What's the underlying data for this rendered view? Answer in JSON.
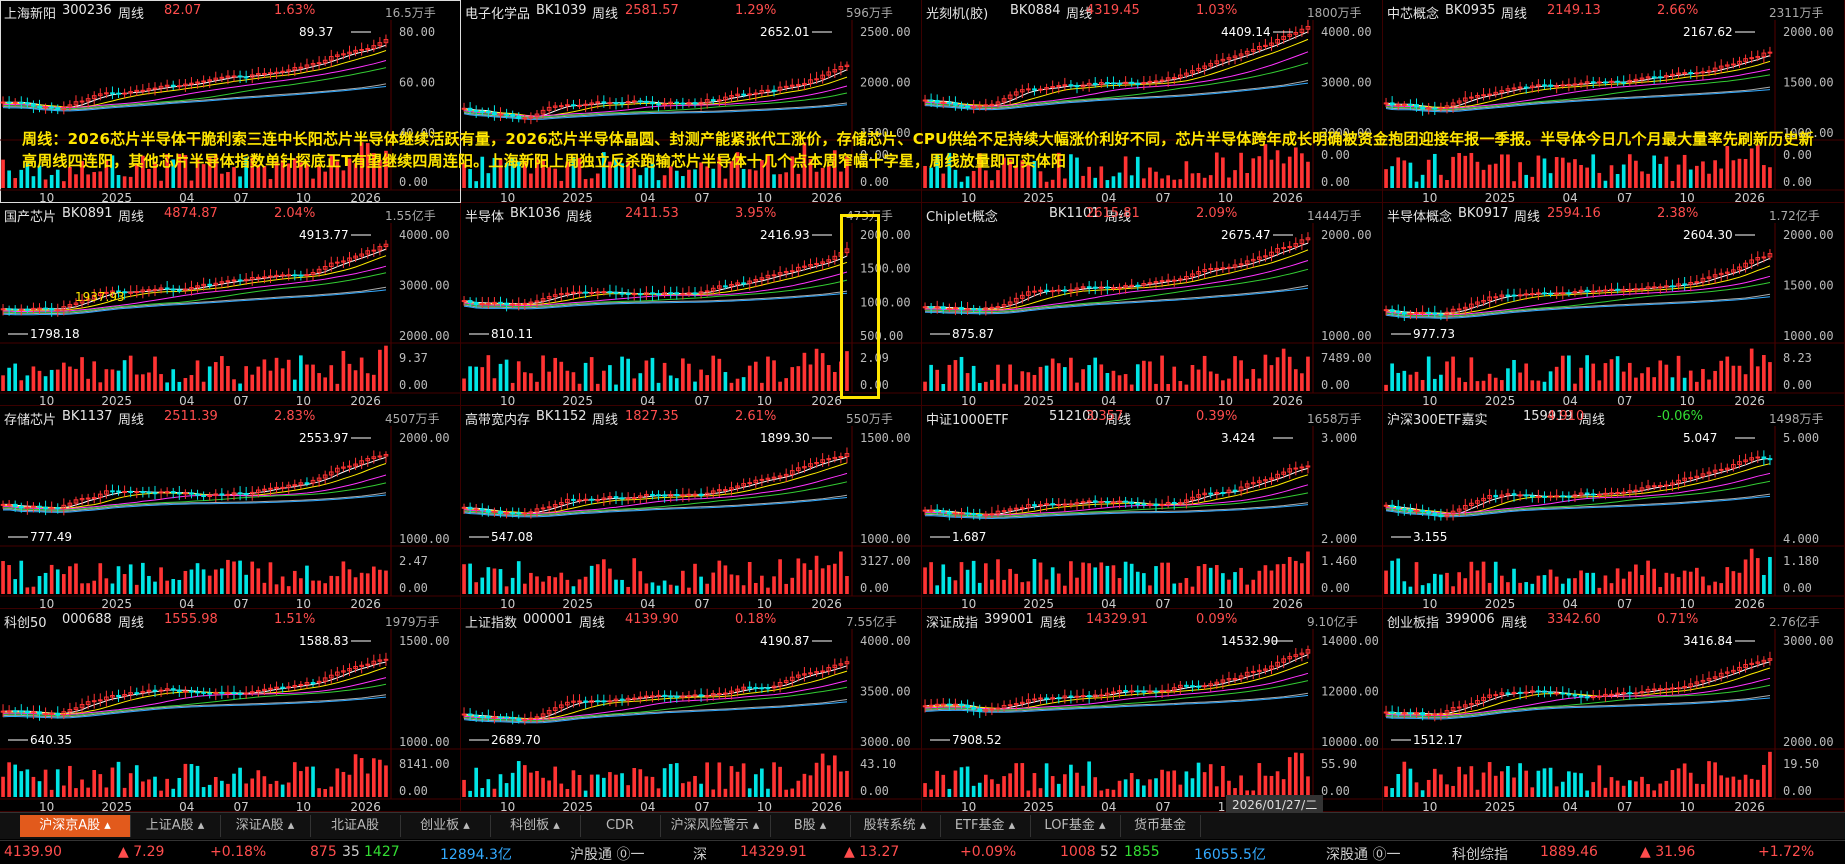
{
  "panels": [
    {
      "name": "上海新阳",
      "code": "300236",
      "type": "周线",
      "price": "82.07",
      "change": "1.63%",
      "vol": "16.5万手",
      "high": "89.37",
      "low": "",
      "yticks": [
        "80.00",
        "60.00",
        "40.00"
      ],
      "voltick": "",
      "xticks": [
        "10",
        "2025",
        "04",
        "07",
        "10",
        "2026"
      ],
      "trend": "up"
    },
    {
      "name": "电子化学品",
      "code": "BK1039",
      "type": "周线",
      "price": "2581.57",
      "change": "1.29%",
      "vol": "596万手",
      "high": "2652.01",
      "low": "",
      "yticks": [
        "2500.00",
        "2000.00",
        "1500.00"
      ],
      "voltick": "0.00",
      "xticks": [
        "10",
        "2025",
        "04",
        "07",
        "10",
        "2026"
      ],
      "trend": "up"
    },
    {
      "name": "光刻机(胶)",
      "code": "BK0884",
      "type": "周线",
      "price": "4319.45",
      "change": "1.03%",
      "vol": "1800万手",
      "high": "4409.14",
      "low": "",
      "yticks": [
        "4000.00",
        "3000.00",
        "2000.00"
      ],
      "voltick": "0.00",
      "xticks": [
        "10",
        "2025",
        "04",
        "07",
        "10",
        "2026"
      ],
      "trend": "up"
    },
    {
      "name": "中芯概念",
      "code": "BK0935",
      "type": "周线",
      "price": "2149.13",
      "change": "2.66%",
      "vol": "2311万手",
      "high": "2167.62",
      "low": "",
      "yticks": [
        "2000.00",
        "1500.00",
        "1000.00"
      ],
      "voltick": "0.00",
      "xticks": [
        "10",
        "2025",
        "04",
        "07",
        "10",
        "2026"
      ],
      "trend": "up"
    },
    {
      "name": "国产芯片",
      "code": "BK0891",
      "type": "周线",
      "price": "4874.87",
      "change": "2.04%",
      "vol": "1.55亿手",
      "high": "4913.77",
      "low": "1798.18",
      "yticks": [
        "4000.00",
        "3000.00",
        "2000.00"
      ],
      "voltick": "9.37",
      "xticks": [
        "10",
        "2025",
        "04",
        "07",
        "10",
        "2026"
      ],
      "trend": "up"
    },
    {
      "name": "半导体",
      "code": "BK1036",
      "type": "周线",
      "price": "2411.53",
      "change": "3.95%",
      "vol": "473万手",
      "high": "2416.93",
      "low": "810.11",
      "yticks": [
        "2000.00",
        "1500.00",
        "1000.00",
        "500.00"
      ],
      "voltick": "2.09",
      "xticks": [
        "10",
        "2025",
        "04",
        "07",
        "10",
        "2026"
      ],
      "trend": "up"
    },
    {
      "name": "Chiplet概念",
      "code": "BK1101",
      "type": "周线",
      "price": "2615.81",
      "change": "2.09%",
      "vol": "1444万手",
      "high": "2675.47",
      "low": "875.87",
      "yticks": [
        "2000.00",
        "1000.00"
      ],
      "voltick": "7489.00",
      "xticks": [
        "10",
        "2025",
        "04",
        "07",
        "10",
        "2026"
      ],
      "trend": "up"
    },
    {
      "name": "半导体概念",
      "code": "BK0917",
      "type": "周线",
      "price": "2594.16",
      "change": "2.38%",
      "vol": "1.72亿手",
      "high": "2604.30",
      "low": "977.73",
      "yticks": [
        "2000.00",
        "1500.00",
        "1000.00"
      ],
      "voltick": "8.23",
      "xticks": [
        "10",
        "2025",
        "04",
        "07",
        "10",
        "2026"
      ],
      "trend": "up"
    },
    {
      "name": "存储芯片",
      "code": "BK1137",
      "type": "周线",
      "price": "2511.39",
      "change": "2.83%",
      "vol": "4507万手",
      "high": "2553.97",
      "low": "777.49",
      "yticks": [
        "2000.00",
        "1000.00"
      ],
      "voltick": "2.47",
      "xticks": [
        "10",
        "2025",
        "04",
        "07",
        "10",
        "2026"
      ],
      "trend": "up"
    },
    {
      "name": "高带宽内存",
      "code": "BK1152",
      "type": "周线",
      "price": "1827.35",
      "change": "2.61%",
      "vol": "550万手",
      "high": "1899.30",
      "low": "547.08",
      "yticks": [
        "1500.00",
        "1000.00"
      ],
      "voltick": "3127.00",
      "xticks": [
        "10",
        "2025",
        "04",
        "07",
        "10",
        "2026"
      ],
      "trend": "up"
    },
    {
      "name": "中证1000ETF",
      "code": "512100",
      "type": "周线",
      "price": "3.357",
      "change": "0.39%",
      "vol": "1658万手",
      "high": "3.424",
      "low": "1.687",
      "yticks": [
        "3.000",
        "2.000"
      ],
      "voltick": "1.460",
      "xticks": [
        "10",
        "2025",
        "04",
        "07",
        "10",
        "2026"
      ],
      "trend": "up"
    },
    {
      "name": "沪深300ETF嘉实",
      "code": "159919",
      "type": "周线",
      "price": "4.910",
      "change": "-0.06%",
      "vol": "1498万手",
      "high": "5.047",
      "low": "3.155",
      "yticks": [
        "5.000",
        "4.000"
      ],
      "voltick": "1.180",
      "xticks": [
        "10",
        "2025",
        "04",
        "07",
        "10",
        "2026"
      ],
      "trend": "down"
    },
    {
      "name": "科创50",
      "code": "000688",
      "type": "周线",
      "price": "1555.98",
      "change": "1.51%",
      "vol": "1979万手",
      "high": "1588.83",
      "low": "640.35",
      "yticks": [
        "1500.00",
        "1000.00"
      ],
      "voltick": "8141.00",
      "xticks": [
        "10",
        "2025",
        "04",
        "07",
        "10",
        "2026"
      ],
      "trend": "up"
    },
    {
      "name": "上证指数",
      "code": "000001",
      "type": "周线",
      "price": "4139.90",
      "change": "0.18%",
      "vol": "7.55亿手",
      "high": "4190.87",
      "low": "2689.70",
      "yticks": [
        "4000.00",
        "3500.00",
        "3000.00"
      ],
      "voltick": "43.10",
      "xticks": [
        "10",
        "2025",
        "04",
        "07",
        "10",
        "2026"
      ],
      "trend": "up"
    },
    {
      "name": "深证成指",
      "code": "399001",
      "type": "周线",
      "price": "14329.91",
      "change": "0.09%",
      "vol": "9.10亿手",
      "high": "14532.90",
      "low": "7908.52",
      "yticks": [
        "14000.00",
        "12000.00",
        "10000.00"
      ],
      "voltick": "55.90",
      "xticks": [
        "10",
        "2025",
        "04",
        "07",
        "10",
        "2026"
      ],
      "trend": "up"
    },
    {
      "name": "创业板指",
      "code": "399006",
      "type": "周线",
      "price": "3342.60",
      "change": "0.71%",
      "vol": "2.76亿手",
      "high": "3416.84",
      "low": "1512.17",
      "yticks": [
        "3000.00",
        "2000.00"
      ],
      "voltick": "19.50",
      "xticks": [
        "10",
        "2025",
        "04",
        "07",
        "10",
        "2026"
      ],
      "trend": "up"
    }
  ],
  "annotation": "周线：2026芯片半导体干脆利索三连中长阳芯片半导体继续活跃有量，2026芯片半导体晶圆、封测产能紧张代工涨价，存储芯片、CPU供给不足持续大幅涨价利好不同，芯片半导体跨年成长明确被资金抱团迎接年报一季报。半导体今日几个月最大量率先刷新历史新高周线四连阳，其他芯片半导体指数单针探底正T有望继续四周连阳。上海新阳上周独立反杀跑输芯片半导体十几个点本周窄幅十字星，周线放量即可实体阳",
  "extra_label": "1937.93",
  "date_tip": "2026/01/27/二",
  "tabs": [
    "沪深京A股 ▴",
    "上证A股 ▴",
    "深证A股 ▴",
    "北证A股",
    "创业板 ▴",
    "科创板 ▴",
    "CDR",
    "沪深风险警示 ▴",
    "B股 ▴",
    "股转系统 ▴",
    "ETF基金 ▴",
    "LOF基金 ▴",
    "货币基金"
  ],
  "status": {
    "sh_price": "4139.90",
    "sh_chg": "▲ 7.29",
    "sh_pct": "+0.18%",
    "sh_up": "875",
    "sh_flat": "35",
    "sh_down": "1427",
    "sh_amount": "12894.3亿",
    "hgt": "沪股通 ⓪一",
    "sz_label": "深",
    "sz_price": "14329.91",
    "sz_chg": "▲ 13.27",
    "sz_pct": "+0.09%",
    "sz_up": "1008",
    "sz_flat": "52",
    "sz_down": "1855",
    "sz_amount": "16055.5亿",
    "sgt": "深股通 ⓪一",
    "kc_label": "科创综指",
    "kc_price": "1889.46",
    "kc_chg": "▲ 31.96",
    "kc_pct": "+1.72%"
  },
  "colors": {
    "up": "#ff3333",
    "down": "#00e5e5",
    "ma5": "#ffffff",
    "ma10": "#ffee00",
    "ma20": "#ff33ff",
    "ma30": "#33cc33",
    "ma60": "#aaaaaa",
    "ma120": "#33aaff"
  }
}
